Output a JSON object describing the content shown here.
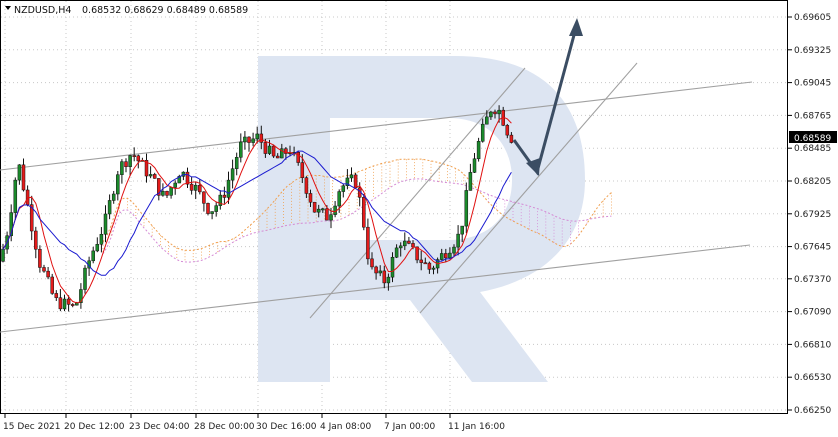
{
  "header": {
    "symbol_label": "NZDUSD,H4",
    "ohlc": "0.68532 0.68629 0.68489 0.68589"
  },
  "price_badge": "0.68589",
  "colors": {
    "bull": "#1b8a2b",
    "bear": "#e31b1b",
    "tenkan": "#e01010",
    "kijun": "#1a1ad0",
    "cloud": "#f0a050",
    "cloud_alt": "#d58ad5",
    "channel": "#a0a0a0",
    "arrow": "#3b4d63",
    "watermark": "#dde5f2",
    "grid": "#c8c8c8"
  },
  "chart_data": {
    "type": "candlestick",
    "title": "NZDUSD,H4",
    "price_ticks": [
      "0.69605",
      "0.69325",
      "0.69045",
      "0.68765",
      "0.68485",
      "0.68205",
      "0.67925",
      "0.67645",
      "0.67370",
      "0.67090",
      "0.66810",
      "0.66530",
      "0.66250"
    ],
    "time_ticks": [
      "15 Dec 2021",
      "20 Dec 12:00",
      "23 Dec 04:00",
      "28 Dec 00:00",
      "30 Dec 16:00",
      "4 Jan 08:00",
      "7 Jan 00:00",
      "11 Jan 16:00"
    ],
    "ylim": [
      0.6625,
      0.6974
    ],
    "last_price": 0.68589,
    "indicators": [
      "Ichimoku Kinko Hyo"
    ],
    "grid": true
  }
}
